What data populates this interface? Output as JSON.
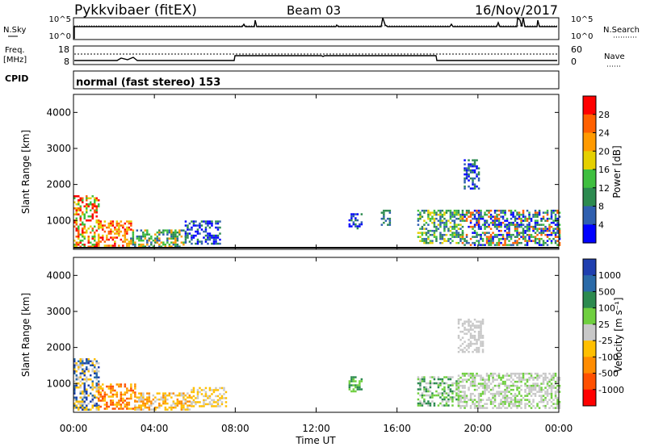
{
  "header": {
    "station": "Pykkvibaer (fitEX)",
    "beam": "Beam 03",
    "date": "16/Nov/2017"
  },
  "panels": {
    "nsky": {
      "label": "N.Sky",
      "ticks": [
        "10^5",
        "10^0"
      ]
    },
    "nsearch": {
      "label": "N.Search",
      "ticks": [
        "10^5",
        "10^0"
      ]
    },
    "freq": {
      "label_line1": "Freq.",
      "label_line2": "[MHz]",
      "ticks": [
        "18",
        "8"
      ]
    },
    "nave": {
      "label": "Nave",
      "ticks": [
        "60",
        "0"
      ]
    },
    "cpid": {
      "label": "CPID",
      "value": "normal (fast stereo) 153"
    }
  },
  "colors": {
    "power": [
      "#0000ff",
      "#2f5faf",
      "#2c8a4f",
      "#3fbf3f",
      "#e5d000",
      "#ff9a00",
      "#ff6000",
      "#ff0000"
    ],
    "velocity": [
      "#1f3faf",
      "#2a6aa8",
      "#2c8a4f",
      "#6fcf3f",
      "#c8c8c8",
      "#ffbf00",
      "#ff8c00",
      "#ff5000",
      "#ff0000"
    ]
  },
  "chart_data": [
    {
      "type": "heatmap",
      "name": "power",
      "ylabel": "Slant Range [km]",
      "yticks": [
        "1000",
        "2000",
        "3000",
        "4000"
      ],
      "ylim": [
        200,
        4500
      ],
      "xlim": [
        0,
        24
      ],
      "colorbar": {
        "label": "Power [dB]",
        "ticks": [
          "4",
          "8",
          "12",
          "16",
          "20",
          "24",
          "28"
        ]
      },
      "regions": [
        {
          "t": [
            0.0,
            1.2
          ],
          "r": [
            300,
            1700
          ],
          "levels": [
            3,
            4,
            6,
            7
          ]
        },
        {
          "t": [
            1.2,
            2.8
          ],
          "r": [
            300,
            1000
          ],
          "levels": [
            4,
            5,
            6,
            7
          ]
        },
        {
          "t": [
            2.8,
            5.5
          ],
          "r": [
            250,
            750
          ],
          "levels": [
            1,
            2,
            3,
            5
          ]
        },
        {
          "t": [
            5.5,
            7.2
          ],
          "r": [
            350,
            1000
          ],
          "levels": [
            0,
            1,
            2
          ]
        },
        {
          "t": [
            13.6,
            14.2
          ],
          "r": [
            800,
            1200
          ],
          "levels": [
            0,
            1,
            2
          ]
        },
        {
          "t": [
            15.2,
            15.6
          ],
          "r": [
            900,
            1300
          ],
          "levels": [
            1,
            2
          ]
        },
        {
          "t": [
            17.0,
            19.2
          ],
          "r": [
            400,
            1300
          ],
          "levels": [
            1,
            2,
            3,
            4
          ]
        },
        {
          "t": [
            19.2,
            24.0
          ],
          "r": [
            300,
            1300
          ],
          "levels": [
            0,
            1,
            2,
            3,
            6
          ]
        },
        {
          "t": [
            19.3,
            20.0
          ],
          "r": [
            1900,
            2700
          ],
          "levels": [
            0,
            1,
            2
          ]
        }
      ]
    },
    {
      "type": "heatmap",
      "name": "velocity",
      "xlabel": "Time UT",
      "ylabel": "Slant Range [km]",
      "xticks": [
        "00:00",
        "04:00",
        "08:00",
        "12:00",
        "16:00",
        "20:00",
        "00:00"
      ],
      "yticks": [
        "1000",
        "2000",
        "3000",
        "4000"
      ],
      "ylim": [
        200,
        4500
      ],
      "xlim": [
        0,
        24
      ],
      "colorbar": {
        "label": "Velocity [m s⁻¹]",
        "ticks": [
          "1000",
          "500",
          "100",
          "25",
          "-25",
          "-100",
          "-500",
          "-1000"
        ]
      },
      "regions": [
        {
          "t": [
            0.0,
            1.2
          ],
          "r": [
            300,
            1700
          ],
          "levels": [
            0,
            1,
            4,
            5
          ]
        },
        {
          "t": [
            1.2,
            3.0
          ],
          "r": [
            300,
            1000
          ],
          "levels": [
            5,
            6,
            7
          ]
        },
        {
          "t": [
            3.0,
            5.8
          ],
          "r": [
            250,
            750
          ],
          "levels": [
            5,
            6,
            4
          ]
        },
        {
          "t": [
            5.8,
            7.5
          ],
          "r": [
            350,
            900
          ],
          "levels": [
            4,
            5
          ]
        },
        {
          "t": [
            13.6,
            14.2
          ],
          "r": [
            800,
            1200
          ],
          "levels": [
            2,
            3
          ]
        },
        {
          "t": [
            17.0,
            19.0
          ],
          "r": [
            400,
            1200
          ],
          "levels": [
            2,
            3,
            4
          ]
        },
        {
          "t": [
            19.0,
            24.0
          ],
          "r": [
            300,
            1300
          ],
          "levels": [
            3,
            4,
            4
          ]
        },
        {
          "t": [
            19.0,
            20.2
          ],
          "r": [
            1900,
            2800
          ],
          "levels": [
            4
          ]
        }
      ]
    }
  ]
}
